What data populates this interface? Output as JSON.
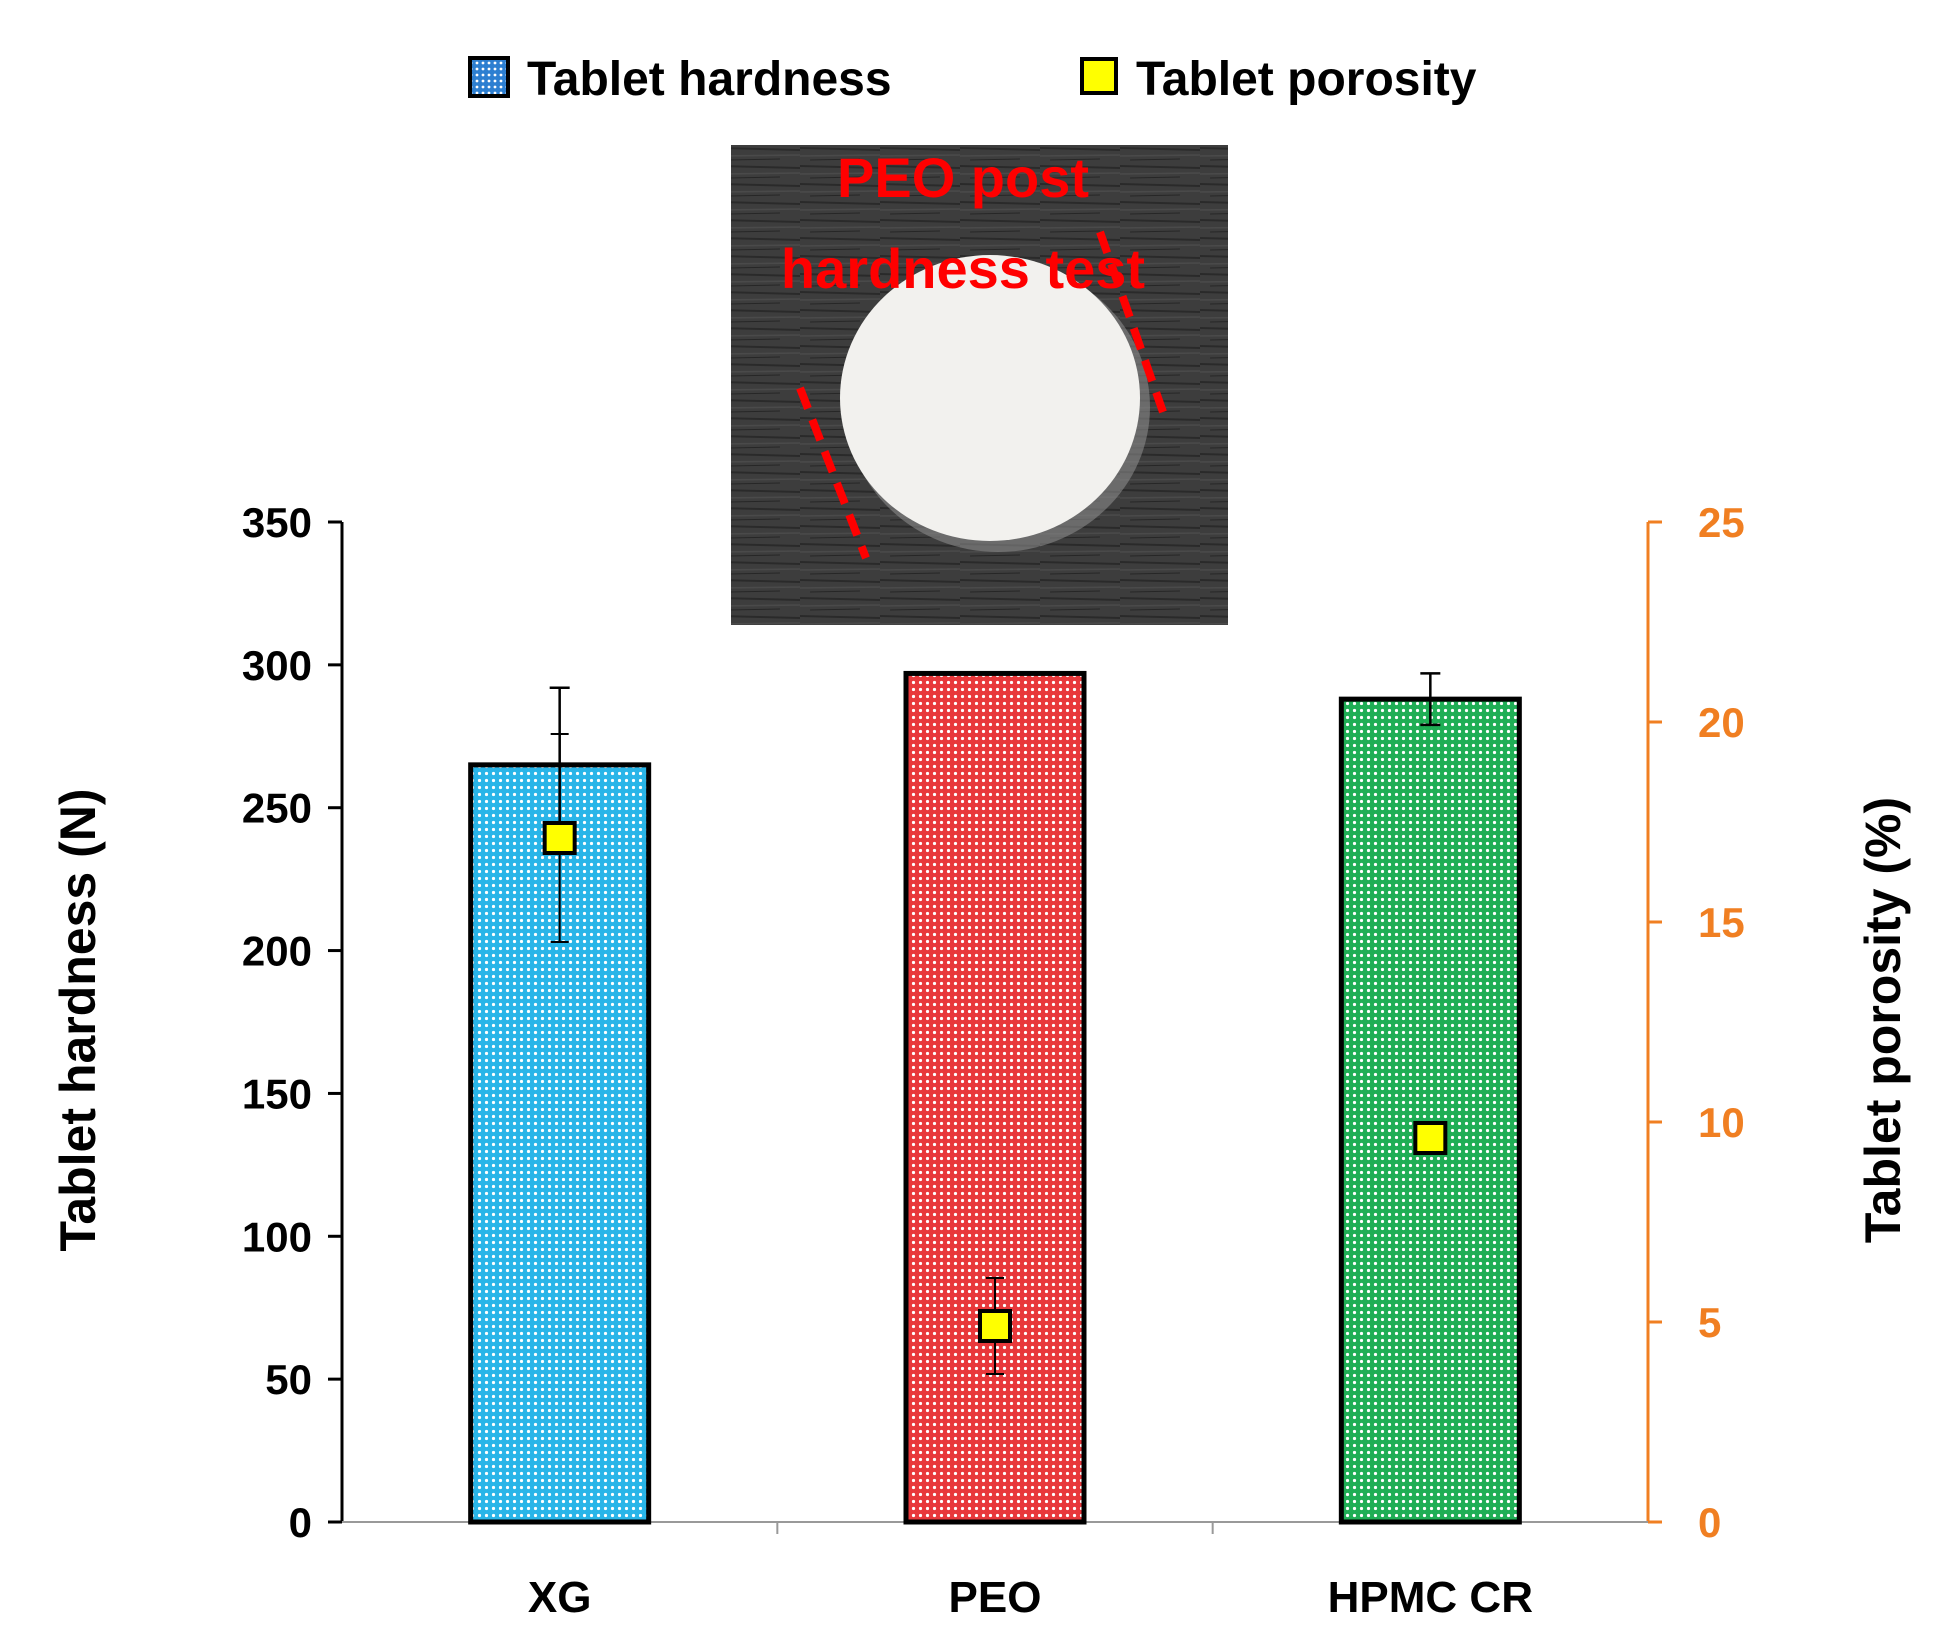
{
  "legend": {
    "hardness_label": "Tablet hardness",
    "porosity_label": "Tablet porosity"
  },
  "inset": {
    "caption_line1": "PEO post",
    "caption_line2": "hardness test"
  },
  "colors": {
    "xg_bar": "#29b5e8",
    "peo_bar": "#e8383b",
    "hpmc_bar": "#1fae55",
    "marker_fill": "#ffff00",
    "right_axis": "#f07f22",
    "caption": "#ff0000",
    "axis": "#000000"
  },
  "chart_data": {
    "type": "bar",
    "categories": [
      "XG",
      "PEO",
      "HPMC CR"
    ],
    "ylabel": "Tablet hardness (N)",
    "y2label": "Tablet porosity (%)",
    "ylim": [
      0,
      350
    ],
    "y2lim": [
      0,
      25
    ],
    "yticks": [
      0,
      50,
      100,
      150,
      200,
      250,
      300,
      350
    ],
    "y2ticks": [
      0,
      5,
      10,
      15,
      20,
      25
    ],
    "legend_position": "top-center",
    "grid": false,
    "series": [
      {
        "name": "Tablet hardness",
        "kind": "bar",
        "axis": "left",
        "values": [
          265,
          297,
          288
        ],
        "errors": [
          27,
          0,
          9
        ]
      },
      {
        "name": "Tablet porosity",
        "kind": "marker",
        "axis": "right",
        "values": [
          17.1,
          4.9,
          9.6
        ],
        "errors": [
          2.6,
          1.2,
          0
        ]
      }
    ]
  }
}
